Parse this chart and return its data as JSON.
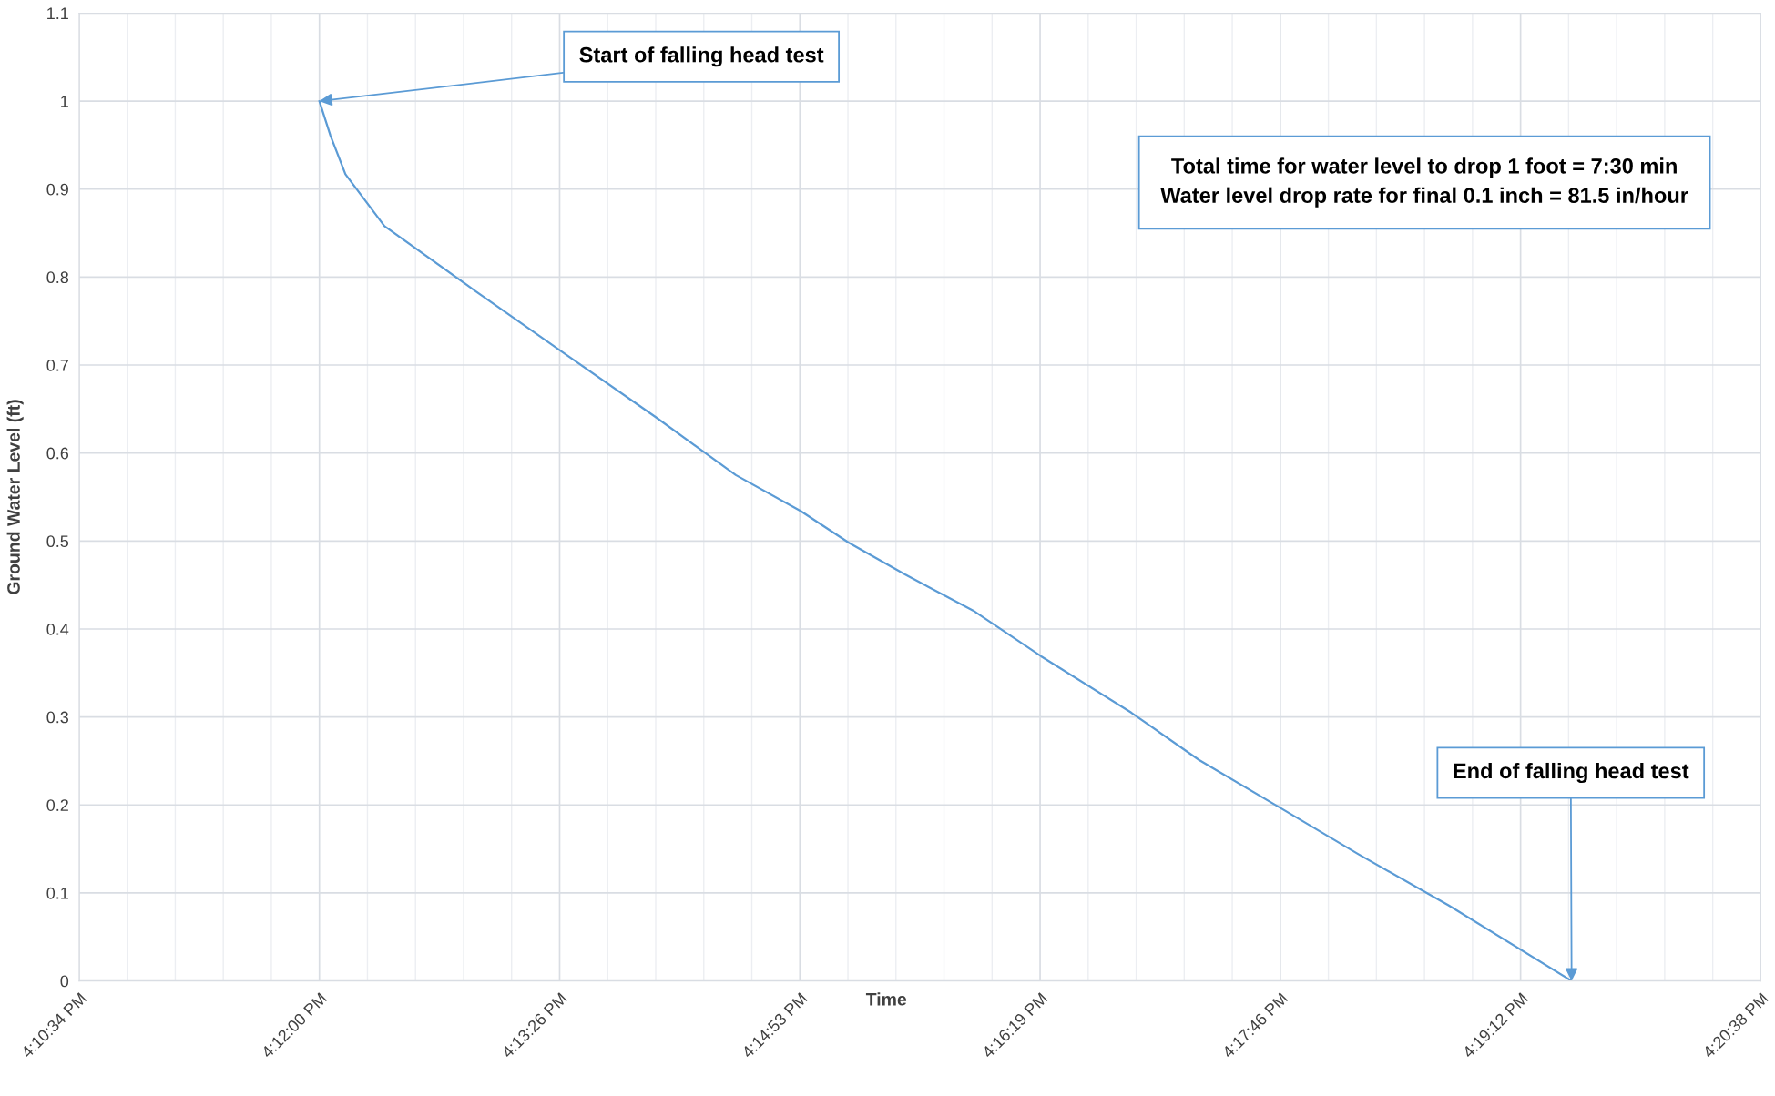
{
  "chart_data": {
    "type": "line",
    "xlabel": "Time",
    "ylabel": "Ground Water Level (ft)",
    "x": [
      16.2,
      16.2011,
      16.2026,
      16.2065,
      16.2156,
      16.224,
      16.2337,
      16.2416,
      16.2481,
      16.2529,
      16.2585,
      16.2653,
      16.2721,
      16.2811,
      16.2879,
      16.2961,
      16.3038,
      16.3128,
      16.3251
    ],
    "series": [
      {
        "color": "#5b9bd5",
        "values": [
          1,
          0.961,
          0.917,
          0.858,
          0.784,
          0.717,
          0.64,
          0.575,
          0.534,
          0.498,
          0.462,
          0.421,
          0.369,
          0.305,
          0.251,
          0.196,
          0.144,
          0.086,
          0
        ]
      }
    ],
    "xlim": [
      16.176,
      16.344
    ],
    "xticks": [
      {
        "value": 16.176,
        "label": "4:10:34 PM"
      },
      {
        "value": 16.2,
        "label": "4:12:00 PM"
      },
      {
        "value": 16.224,
        "label": "4:13:26 PM"
      },
      {
        "value": 16.248,
        "label": "4:14:53 PM"
      },
      {
        "value": 16.272,
        "label": "4:16:19 PM"
      },
      {
        "value": 16.296,
        "label": "4:17:46 PM"
      },
      {
        "value": 16.32,
        "label": "4:19:12 PM"
      },
      {
        "value": 16.344,
        "label": "4:20:38 PM"
      }
    ],
    "ylim": [
      0,
      1.1
    ],
    "yticks": [
      0,
      0.1,
      0.2,
      0.3,
      0.4,
      0.5,
      0.6,
      0.7,
      0.8,
      0.9,
      1,
      1.1
    ],
    "grid": true,
    "marker": "none",
    "line_style": "solid",
    "annotations": [
      {
        "text": "Start of falling head test",
        "x": 16.2,
        "y": 1
      },
      "Total time for water level to drop 1 foot = 7:30 min\nWater level drop rate for final 0.1 inch = 81.5 in/hour",
      {
        "text": "End of falling head test",
        "x": 16.3251,
        "y": 0
      }
    ]
  }
}
